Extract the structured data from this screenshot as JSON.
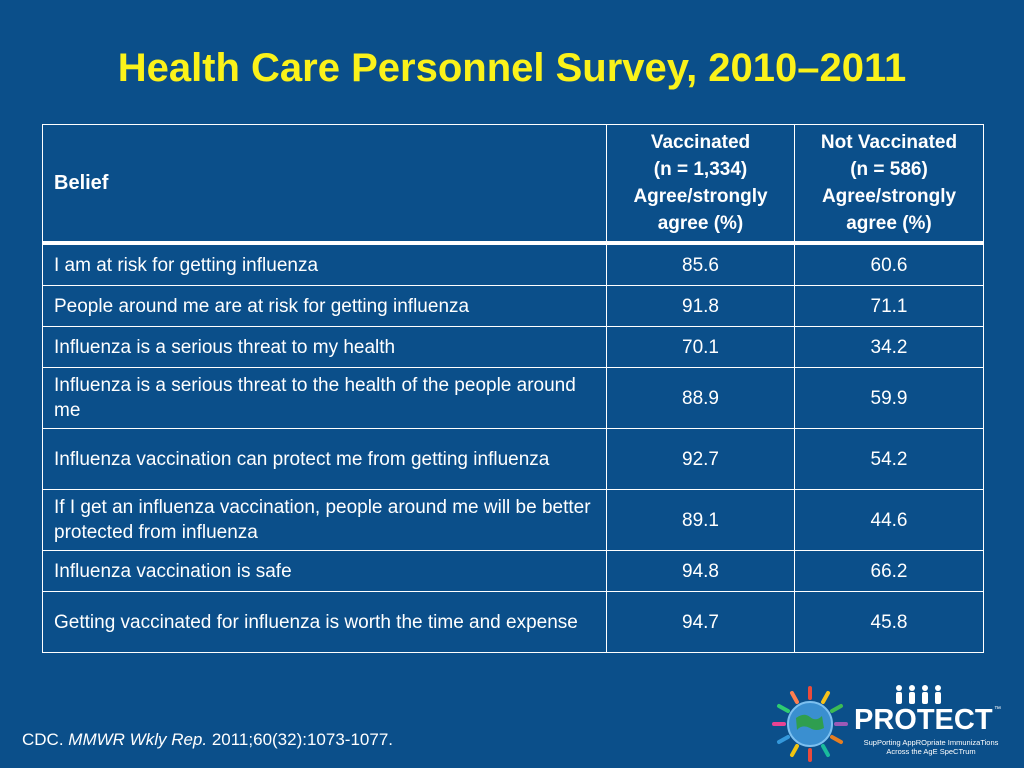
{
  "title": "Health Care Personnel Survey, 2010–2011",
  "table": {
    "headers": {
      "belief": "Belief",
      "vaccinated": {
        "line1": "Vaccinated",
        "line2": "(n = 1,334)",
        "line3": "Agree/strongly",
        "line4": "agree (%)"
      },
      "not_vaccinated": {
        "line1": "Not Vaccinated",
        "line2": "(n = 586)",
        "line3": "Agree/strongly",
        "line4": "agree (%)"
      }
    },
    "rows": [
      {
        "belief": "I am at risk for getting influenza",
        "vaccinated": "85.6",
        "not_vaccinated": "60.6"
      },
      {
        "belief": "People around me are at risk for getting influenza",
        "vaccinated": "91.8",
        "not_vaccinated": "71.1"
      },
      {
        "belief": "Influenza is a serious threat to my health",
        "vaccinated": "70.1",
        "not_vaccinated": "34.2"
      },
      {
        "belief": "Influenza is a serious threat to the health of the people around me",
        "vaccinated": "88.9",
        "not_vaccinated": "59.9"
      },
      {
        "belief": "Influenza vaccination can protect me from getting influenza",
        "vaccinated": "92.7",
        "not_vaccinated": "54.2"
      },
      {
        "belief": "If I get an influenza vaccination, people around me will be better protected from influenza",
        "vaccinated": "89.1",
        "not_vaccinated": "44.6"
      },
      {
        "belief": "Influenza vaccination is safe",
        "vaccinated": "94.8",
        "not_vaccinated": "66.2"
      },
      {
        "belief": "Getting vaccinated for influenza is worth the time and expense",
        "vaccinated": "94.7",
        "not_vaccinated": "45.8"
      }
    ]
  },
  "source": {
    "prefix": "CDC. ",
    "journal": "MMWR Wkly Rep.",
    "citation": " 2011;60(32):1073-1077."
  },
  "logo": {
    "wordmark": "PROTECT",
    "trademark": "™",
    "tagline_line1": "SupPorting AppROpriate ImmunizaTions",
    "tagline_line2": "Across the AgE SpeCTrum"
  },
  "colors": {
    "background": "#0b4f8a",
    "title": "#fbf21a",
    "text": "#ffffff"
  }
}
